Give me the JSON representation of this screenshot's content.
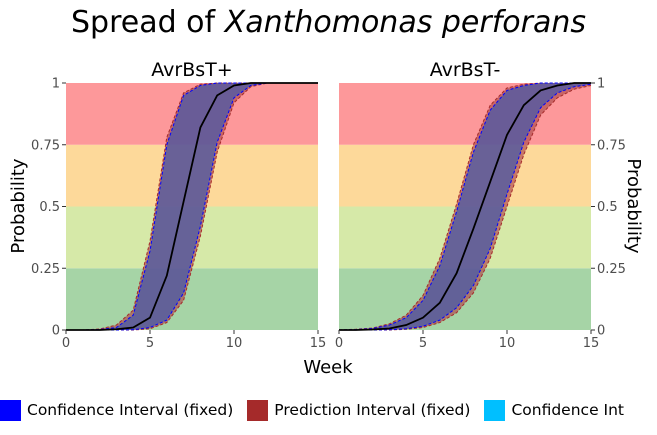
{
  "title_prefix": "Spread of ",
  "title_species": "Xanthomonas perforans",
  "chart_data": {
    "type": "line",
    "title": "Spread of Xanthomonas perforans",
    "xlabel": "Week",
    "ylabel": "Probability",
    "xlim": [
      0,
      15
    ],
    "ylim": [
      0,
      1
    ],
    "x_ticks": [
      0,
      5,
      10,
      15
    ],
    "x_tick_labels": [
      "0",
      "5",
      "10",
      "15"
    ],
    "y_ticks": [
      0,
      0.25,
      0.5,
      0.75,
      1
    ],
    "y_tick_labels": [
      "0",
      "0.25",
      "0.5",
      "0.75",
      "1"
    ],
    "background_bands": [
      {
        "from": 0,
        "to": 0.25,
        "color": "#a6d4a6"
      },
      {
        "from": 0.25,
        "to": 0.5,
        "color": "#d6e9a8"
      },
      {
        "from": 0.5,
        "to": 0.75,
        "color": "#fdd99a"
      },
      {
        "from": 0.75,
        "to": 1,
        "color": "#fd989a"
      }
    ],
    "grid": false,
    "legend_position": "bottom",
    "panels": [
      {
        "label": "AvrBsT+",
        "x": [
          0,
          1,
          2,
          3,
          4,
          5,
          6,
          7,
          8,
          9,
          10,
          11,
          12,
          13,
          14,
          15
        ],
        "fit": [
          0.0,
          0.0,
          0.0,
          0.003,
          0.01,
          0.05,
          0.22,
          0.52,
          0.82,
          0.95,
          0.99,
          1.0,
          1.0,
          1.0,
          1.0,
          1.0
        ],
        "ci_upper": [
          0.0,
          0.0,
          0.002,
          0.01,
          0.06,
          0.32,
          0.75,
          0.95,
          0.99,
          1.0,
          1.0,
          1.0,
          1.0,
          1.0,
          1.0,
          1.0
        ],
        "ci_lower": [
          0.0,
          0.0,
          0.0,
          0.0,
          0.001,
          0.01,
          0.04,
          0.15,
          0.42,
          0.76,
          0.94,
          0.99,
          1.0,
          1.0,
          1.0,
          1.0
        ],
        "pi_upper": [
          0.0,
          0.0,
          0.004,
          0.02,
          0.08,
          0.36,
          0.78,
          0.96,
          0.995,
          1.0,
          1.0,
          1.0,
          1.0,
          1.0,
          1.0,
          1.0
        ],
        "pi_lower": [
          0.0,
          0.0,
          0.0,
          0.0,
          0.0,
          0.005,
          0.03,
          0.12,
          0.38,
          0.72,
          0.92,
          0.985,
          1.0,
          1.0,
          1.0,
          1.0
        ]
      },
      {
        "label": "AvrBsT-",
        "x": [
          0,
          1,
          2,
          3,
          4,
          5,
          6,
          7,
          8,
          9,
          10,
          11,
          12,
          13,
          14,
          15
        ],
        "fit": [
          0.0,
          0.0,
          0.002,
          0.006,
          0.02,
          0.05,
          0.11,
          0.23,
          0.41,
          0.6,
          0.79,
          0.91,
          0.97,
          0.99,
          1.0,
          1.0
        ],
        "ci_upper": [
          0.0,
          0.002,
          0.006,
          0.02,
          0.05,
          0.12,
          0.26,
          0.48,
          0.72,
          0.89,
          0.97,
          0.99,
          1.0,
          1.0,
          1.0,
          1.0
        ],
        "ci_lower": [
          0.0,
          0.0,
          0.0,
          0.001,
          0.005,
          0.015,
          0.04,
          0.09,
          0.18,
          0.33,
          0.55,
          0.76,
          0.9,
          0.96,
          0.985,
          0.995
        ],
        "pi_upper": [
          0.0,
          0.003,
          0.008,
          0.025,
          0.06,
          0.14,
          0.29,
          0.51,
          0.75,
          0.91,
          0.98,
          0.995,
          1.0,
          1.0,
          1.0,
          1.0
        ],
        "pi_lower": [
          0.0,
          0.0,
          0.0,
          0.0,
          0.003,
          0.01,
          0.03,
          0.07,
          0.15,
          0.29,
          0.5,
          0.71,
          0.87,
          0.94,
          0.975,
          0.99
        ]
      }
    ],
    "series_styles": {
      "fit": "#000000",
      "ci_fill": "#4a5aa8",
      "ci_edge": "#0000ff",
      "pi_fill": "#b05050",
      "pi_edge": "#a52a2a"
    },
    "legend": [
      {
        "label": "Confidence Interval (fixed)",
        "color": "#0000ff"
      },
      {
        "label": "Prediction Interval (fixed)",
        "color": "#a52a2a"
      },
      {
        "label": "Confidence Int",
        "color": "#00bfff"
      }
    ]
  }
}
